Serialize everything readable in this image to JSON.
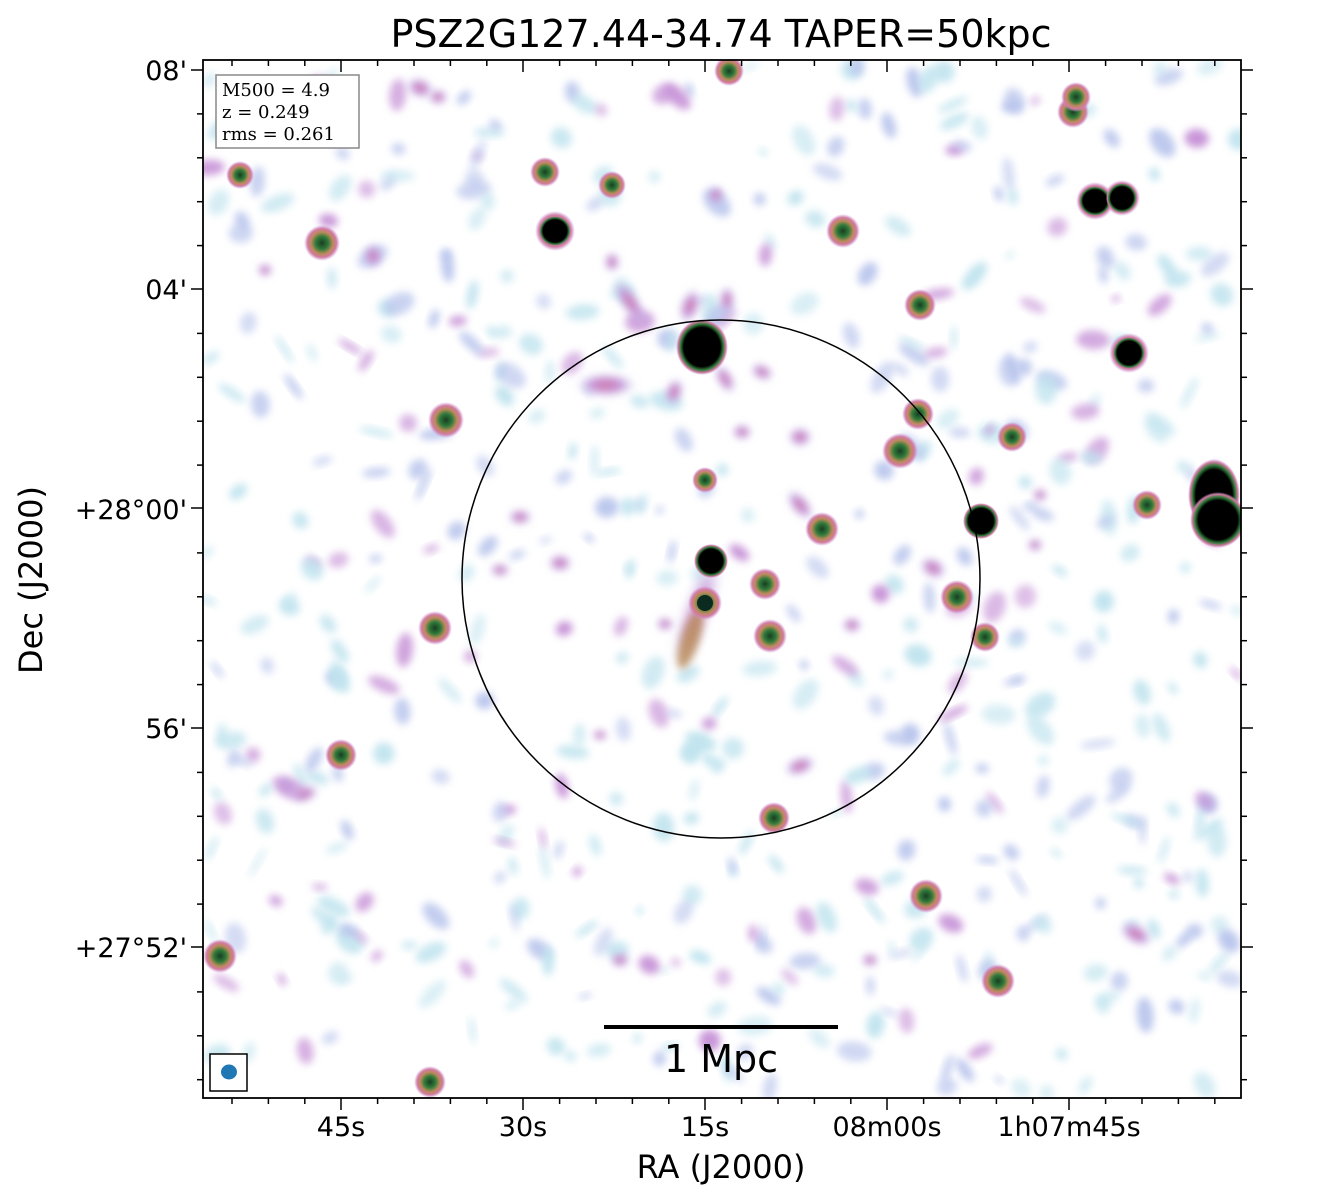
{
  "chart_data": {
    "type": "image",
    "title": "PSZ2G127.44-34.74 TAPER=50kpc",
    "xlabel": "RA (J2000)",
    "ylabel": "Dec (J2000)",
    "x_ticks": [
      "45s",
      "30s",
      "15s",
      "08m00s",
      "1h07m45s"
    ],
    "y_ticks": [
      "08'",
      "04'",
      "+28°00'",
      "56'",
      "+27°52'"
    ],
    "info_box": {
      "m500": "M500 = 4.9",
      "z": "z = 0.249",
      "rms": "rms = 0.261"
    },
    "scale_bar": {
      "label": "1 Mpc"
    },
    "circle_present": true,
    "beam_marker_color": "#1f77b4",
    "colormap": [
      "#bfe3ee",
      "#b8c4ec",
      "#c58fd6",
      "#d47aa1",
      "#b98a5a",
      "#2f7a3a",
      "#000000"
    ]
  }
}
